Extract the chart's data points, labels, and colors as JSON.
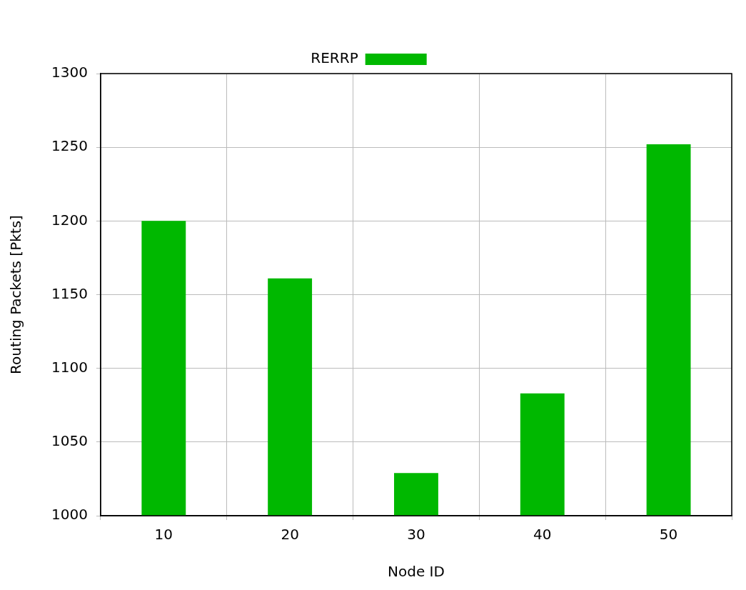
{
  "chart_data": {
    "type": "bar",
    "xlabel": "Node ID",
    "ylabel": "Routing Packets [Pkts]",
    "categories": [
      "10",
      "20",
      "30",
      "40",
      "50"
    ],
    "series": [
      {
        "name": "RERRP",
        "color": "#00b800",
        "values": [
          1200,
          1161,
          1029,
          1083,
          1252
        ]
      }
    ],
    "ylim": [
      1000,
      1300
    ],
    "yticks": [
      1000,
      1050,
      1100,
      1150,
      1200,
      1250,
      1300
    ],
    "grid": true,
    "legend": "top"
  }
}
